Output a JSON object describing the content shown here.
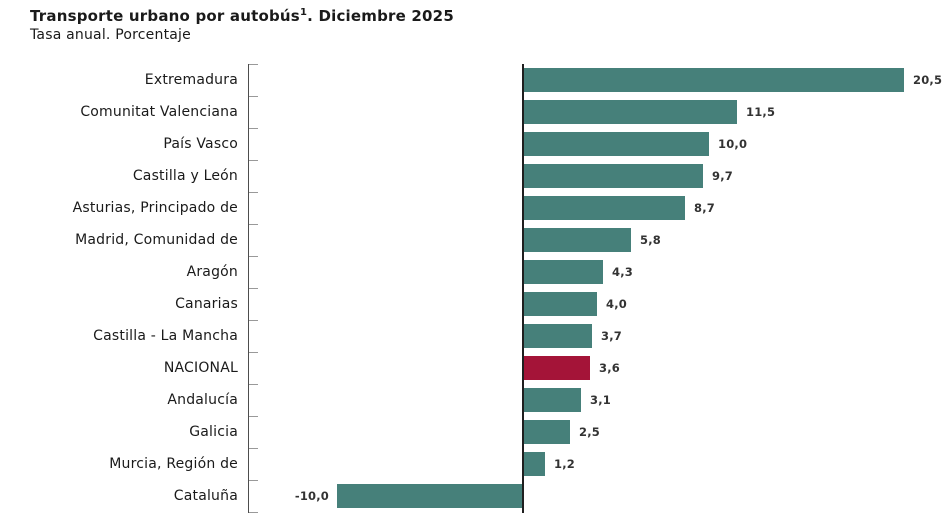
{
  "header": {
    "title_main": "Transporte urbano por autobús",
    "title_sup": "1",
    "title_suffix": ". Diciembre 2025",
    "subtitle": "Tasa anual. Porcentaje"
  },
  "chart_data": {
    "type": "bar",
    "orientation": "horizontal",
    "title": "Transporte urbano por autobús¹. Diciembre 2025",
    "subtitle": "Tasa anual. Porcentaje",
    "categories": [
      "Extremadura",
      "Comunitat Valenciana",
      "País Vasco",
      "Castilla y León",
      "Asturias, Principado de",
      "Madrid, Comunidad de",
      "Aragón",
      "Canarias",
      "Castilla - La Mancha",
      "NACIONAL",
      "Andalucía",
      "Galicia",
      "Murcia, Región de",
      "Cataluña"
    ],
    "values": [
      20.5,
      11.5,
      10.0,
      9.7,
      8.7,
      5.8,
      4.3,
      4.0,
      3.7,
      3.6,
      3.1,
      2.5,
      1.2,
      -10.0
    ],
    "value_labels": [
      "20,5",
      "11,5",
      "10,0",
      "9,7",
      "8,7",
      "5,8",
      "4,3",
      "4,0",
      "3,7",
      "3,6",
      "3,1",
      "2,5",
      "1,2",
      "-10,0"
    ],
    "highlight_index": 9,
    "highlight_category": "NACIONAL",
    "xlim": [
      -14.8,
      23.0
    ],
    "grid": false,
    "legend": null,
    "colors": {
      "bar": "#46807A",
      "highlight": "#A41438",
      "axis": "#4d4d4d",
      "tick": "#999999",
      "zero_line": "#1f1f1f",
      "label_text": "#1a1a1a",
      "value_text": "#333333"
    }
  }
}
